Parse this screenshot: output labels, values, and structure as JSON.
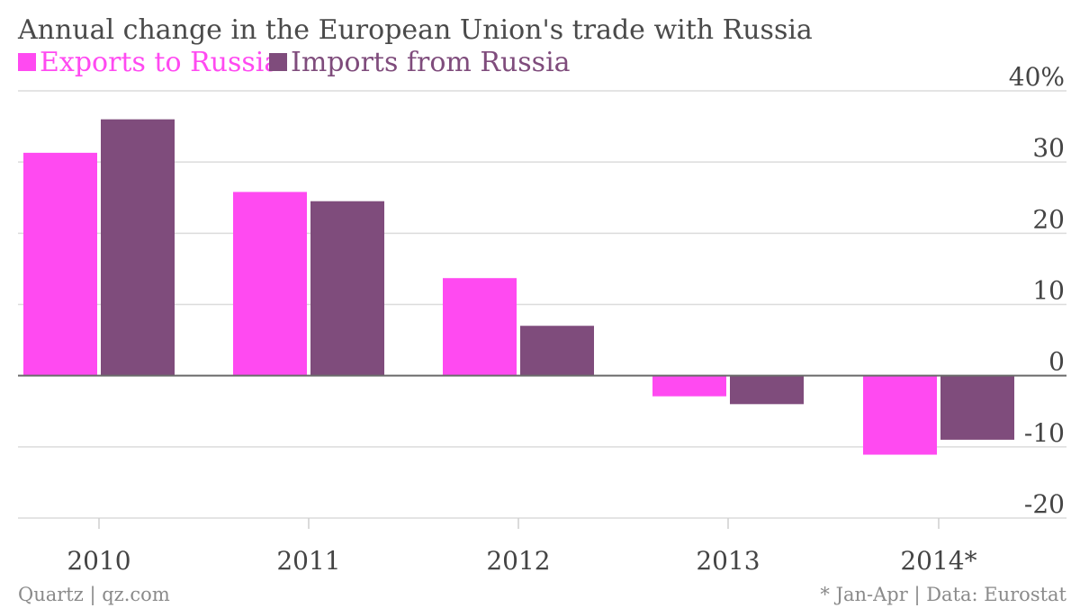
{
  "chart_data": {
    "type": "bar",
    "title": "Annual change in the European Union's trade with Russia",
    "categories": [
      "2010",
      "2011",
      "2012",
      "2013",
      "2014*"
    ],
    "series": [
      {
        "name": "Exports to Russia",
        "color": "#ff4af1",
        "values": [
          31.3,
          25.8,
          13.7,
          -2.9,
          -11.1
        ]
      },
      {
        "name": "Imports from Russia",
        "color": "#7f4c7c",
        "values": [
          36.0,
          24.5,
          7.0,
          -4.0,
          -9.0
        ]
      }
    ],
    "ylim": [
      -20,
      40
    ],
    "yticks": [
      40,
      30,
      20,
      10,
      0,
      -10,
      -20
    ],
    "ytick_labels": [
      "40%",
      "30",
      "20",
      "10",
      "0",
      "-10",
      "-20"
    ],
    "xlabel": "",
    "ylabel": "",
    "grid": true,
    "legend_position": "top-left",
    "axis_position": "right"
  },
  "footer": {
    "source_left": "Quartz | qz.com",
    "source_right": "* Jan-Apr | Data: Eurostat"
  }
}
